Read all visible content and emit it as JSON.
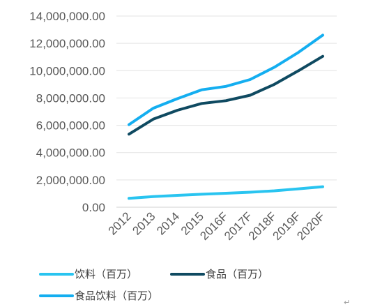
{
  "chart_data": {
    "type": "line",
    "title": "",
    "xlabel": "",
    "ylabel": "",
    "categories": [
      "2012",
      "2013",
      "2014",
      "2015",
      "2016F",
      "2017F",
      "2018F",
      "2019F",
      "2020F"
    ],
    "ylim": [
      0,
      14000000
    ],
    "yticks": [
      0,
      2000000,
      4000000,
      6000000,
      8000000,
      10000000,
      12000000,
      14000000
    ],
    "ytick_labels": [
      "0.00",
      "2,000,000.00",
      "4,000,000.00",
      "6,000,000.00",
      "8,000,000.00",
      "10,000,000.00",
      "12,000,000.00",
      "14,000,000.00"
    ],
    "grid": true,
    "legend_position": "bottom",
    "series": [
      {
        "name": "饮料（百万）",
        "color": "#29c4f0",
        "values": [
          650000,
          780000,
          870000,
          950000,
          1020000,
          1100000,
          1200000,
          1350000,
          1500000
        ]
      },
      {
        "name": "食品（百万）",
        "color": "#0f4a61",
        "values": [
          5350000,
          6450000,
          7100000,
          7600000,
          7800000,
          8200000,
          9000000,
          10000000,
          11050000
        ]
      },
      {
        "name": "食品饮料（百万）",
        "color": "#14aef0",
        "values": [
          6050000,
          7250000,
          7950000,
          8600000,
          8850000,
          9350000,
          10250000,
          11350000,
          12600000
        ]
      }
    ]
  },
  "page": {
    "trailing_mark": "↵"
  }
}
